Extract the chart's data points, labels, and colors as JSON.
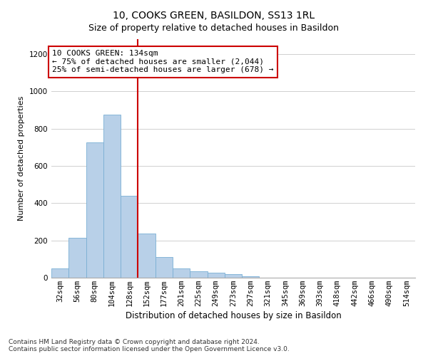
{
  "title": "10, COOKS GREEN, BASILDON, SS13 1RL",
  "subtitle": "Size of property relative to detached houses in Basildon",
  "xlabel": "Distribution of detached houses by size in Basildon",
  "ylabel": "Number of detached properties",
  "bar_labels": [
    "32sqm",
    "56sqm",
    "80sqm",
    "104sqm",
    "128sqm",
    "152sqm",
    "177sqm",
    "201sqm",
    "225sqm",
    "249sqm",
    "273sqm",
    "297sqm",
    "321sqm",
    "345sqm",
    "369sqm",
    "393sqm",
    "418sqm",
    "442sqm",
    "466sqm",
    "490sqm",
    "514sqm"
  ],
  "bar_values": [
    50,
    215,
    725,
    875,
    440,
    235,
    110,
    48,
    35,
    25,
    20,
    8,
    0,
    0,
    0,
    0,
    0,
    0,
    0,
    0,
    0
  ],
  "bar_color": "#b8d0e8",
  "bar_edgecolor": "#7aafd4",
  "vline_x": 4.5,
  "vline_color": "#cc0000",
  "annotation_text": "10 COOKS GREEN: 134sqm\n← 75% of detached houses are smaller (2,044)\n25% of semi-detached houses are larger (678) →",
  "annotation_box_color": "white",
  "annotation_box_edgecolor": "#cc0000",
  "ylim": [
    0,
    1280
  ],
  "yticks": [
    0,
    200,
    400,
    600,
    800,
    1000,
    1200
  ],
  "footnote": "Contains HM Land Registry data © Crown copyright and database right 2024.\nContains public sector information licensed under the Open Government Licence v3.0.",
  "title_fontsize": 10,
  "ylabel_fontsize": 8,
  "xlabel_fontsize": 8.5,
  "tick_fontsize": 7.5,
  "annotation_fontsize": 8,
  "footnote_fontsize": 6.5
}
